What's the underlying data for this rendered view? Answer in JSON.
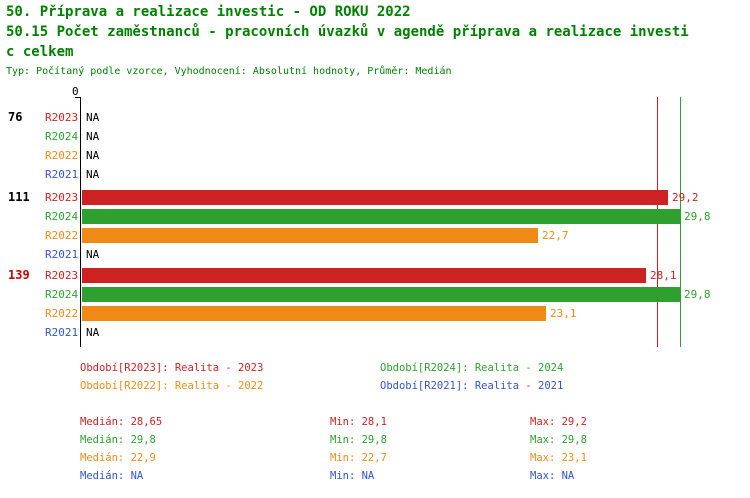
{
  "header": {
    "title_line1": "50. Příprava a realizace investic - OD ROKU 2022",
    "title_line2": "50.15 Počet zaměstnanců - pracovních úvazků v agendě příprava a realizace investi",
    "title_line3": "c celkem",
    "meta": "Typ: Počítaný podle vzorce, Vyhodnocení: Absolutní hodnoty, Průměr: Medián"
  },
  "colors": {
    "title": "#008000",
    "r2023": "#cc2222",
    "r2024": "#2fa02f",
    "r2022": "#ef8a17",
    "r2021": "#3355cc",
    "group_highlight": "#cc0000"
  },
  "chart_data": {
    "type": "bar",
    "orientation": "horizontal",
    "title": "50.15 Počet zaměstnanců - pracovních úvazků v agendě příprava a realizace investic celkem",
    "x_axis": {
      "origin_label": "0",
      "max": 29.8
    },
    "series_periods": [
      "R2023",
      "R2024",
      "R2022",
      "R2021"
    ],
    "groups": [
      {
        "label": "76",
        "highlight": false,
        "rows": [
          {
            "period": "R2023",
            "color_key": "r2023",
            "value": null,
            "value_label": "NA"
          },
          {
            "period": "R2024",
            "color_key": "r2024",
            "value": null,
            "value_label": "NA"
          },
          {
            "period": "R2022",
            "color_key": "r2022",
            "value": null,
            "value_label": "NA"
          },
          {
            "period": "R2021",
            "color_key": "r2021",
            "value": null,
            "value_label": "NA"
          }
        ]
      },
      {
        "label": "111",
        "highlight": false,
        "rows": [
          {
            "period": "R2023",
            "color_key": "r2023",
            "value": 29.2,
            "value_label": "29,2"
          },
          {
            "period": "R2024",
            "color_key": "r2024",
            "value": 29.8,
            "value_label": "29,8"
          },
          {
            "period": "R2022",
            "color_key": "r2022",
            "value": 22.7,
            "value_label": "22,7"
          },
          {
            "period": "R2021",
            "color_key": "r2021",
            "value": null,
            "value_label": "NA"
          }
        ]
      },
      {
        "label": "139",
        "highlight": true,
        "rows": [
          {
            "period": "R2023",
            "color_key": "r2023",
            "value": 28.1,
            "value_label": "28,1"
          },
          {
            "period": "R2024",
            "color_key": "r2024",
            "value": 29.8,
            "value_label": "29,8"
          },
          {
            "period": "R2022",
            "color_key": "r2022",
            "value": 23.1,
            "value_label": "23,1"
          },
          {
            "period": "R2021",
            "color_key": "r2021",
            "value": null,
            "value_label": "NA"
          }
        ]
      }
    ],
    "median_lines": [
      {
        "value": 28.65,
        "color_key": "r2023"
      },
      {
        "value": 29.8,
        "color_key": "r2024"
      }
    ]
  },
  "legend": [
    {
      "text": "Období[R2023]: Realita - 2023",
      "color_key": "r2023"
    },
    {
      "text": "Období[R2024]: Realita - 2024",
      "color_key": "r2024"
    },
    {
      "text": "Období[R2022]: Realita - 2022",
      "color_key": "r2022"
    },
    {
      "text": "Období[R2021]: Realita - 2021",
      "color_key": "r2021"
    }
  ],
  "stats": [
    {
      "color_key": "r2023",
      "median": "Medián: 28,65",
      "min": "Min: 28,1",
      "max": "Max: 29,2"
    },
    {
      "color_key": "r2024",
      "median": "Medián: 29,8",
      "min": "Min: 29,8",
      "max": "Max: 29,8"
    },
    {
      "color_key": "r2022",
      "median": "Medián: 22,9",
      "min": "Min: 22,7",
      "max": "Max: 23,1"
    },
    {
      "color_key": "r2021",
      "median": "Medián: NA",
      "min": "Min: NA",
      "max": "Max: NA"
    }
  ]
}
